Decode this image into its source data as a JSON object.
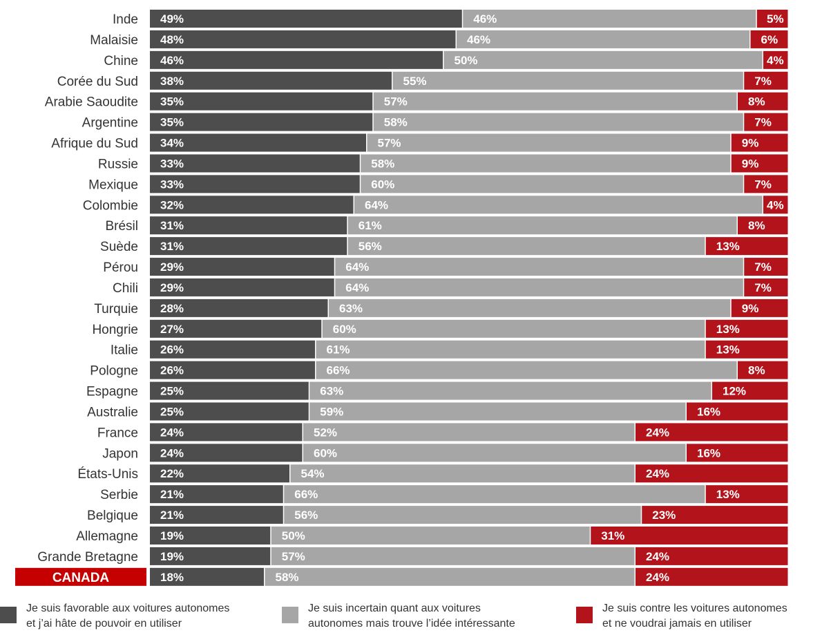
{
  "colors": {
    "favorable": "#4d4d4d",
    "uncertain": "#a6a6a6",
    "against": "#b3141c",
    "highlight": "#c40000"
  },
  "legend": [
    {
      "key": "favorable",
      "line1": "Je suis favorable aux voitures autonomes",
      "line2": "et j’ai hâte de pouvoir en utiliser"
    },
    {
      "key": "uncertain",
      "line1": "Je suis incertain quant aux voitures",
      "line2": "autonomes mais trouve l’idée intéressante"
    },
    {
      "key": "against",
      "line1": "Je suis contre les voitures autonomes",
      "line2": "et ne voudrai jamais en utiliser"
    }
  ],
  "chart_data": {
    "type": "bar",
    "orientation": "horizontal",
    "stacked": true,
    "highlight_category": "CANADA",
    "categories": [
      "Inde",
      "Malaisie",
      "Chine",
      "Corée du Sud",
      "Arabie Saoudite",
      "Argentine",
      "Afrique du Sud",
      "Russie",
      "Mexique",
      "Colombie",
      "Brésil",
      "Suède",
      "Pérou",
      "Chili",
      "Turquie",
      "Hongrie",
      "Italie",
      "Pologne",
      "Espagne",
      "Australie",
      "France",
      "Japon",
      "États-Unis",
      "Serbie",
      "Belgique",
      "Allemagne",
      "Grande Bretagne",
      "CANADA"
    ],
    "series": [
      {
        "name": "Je suis favorable aux voitures autonomes et j’ai hâte de pouvoir en utiliser",
        "key": "favorable",
        "values": [
          49,
          48,
          46,
          38,
          35,
          35,
          34,
          33,
          33,
          32,
          31,
          31,
          29,
          29,
          28,
          27,
          26,
          26,
          25,
          25,
          24,
          24,
          22,
          21,
          21,
          19,
          19,
          18
        ]
      },
      {
        "name": "Je suis incertain quant aux voitures autonomes mais trouve l’idée intéressante",
        "key": "uncertain",
        "values": [
          46,
          46,
          50,
          55,
          57,
          58,
          57,
          58,
          60,
          64,
          61,
          56,
          64,
          64,
          63,
          60,
          61,
          66,
          63,
          59,
          52,
          60,
          54,
          66,
          56,
          50,
          57,
          58
        ]
      },
      {
        "name": "Je suis contre les voitures autonomes et ne voudrai jamais en utiliser",
        "key": "against",
        "values": [
          5,
          6,
          4,
          7,
          8,
          7,
          9,
          9,
          7,
          4,
          8,
          13,
          7,
          7,
          9,
          13,
          13,
          8,
          12,
          16,
          24,
          16,
          24,
          13,
          23,
          31,
          24,
          24
        ]
      }
    ],
    "value_format": "{v}%",
    "xlim": [
      0,
      100
    ]
  }
}
